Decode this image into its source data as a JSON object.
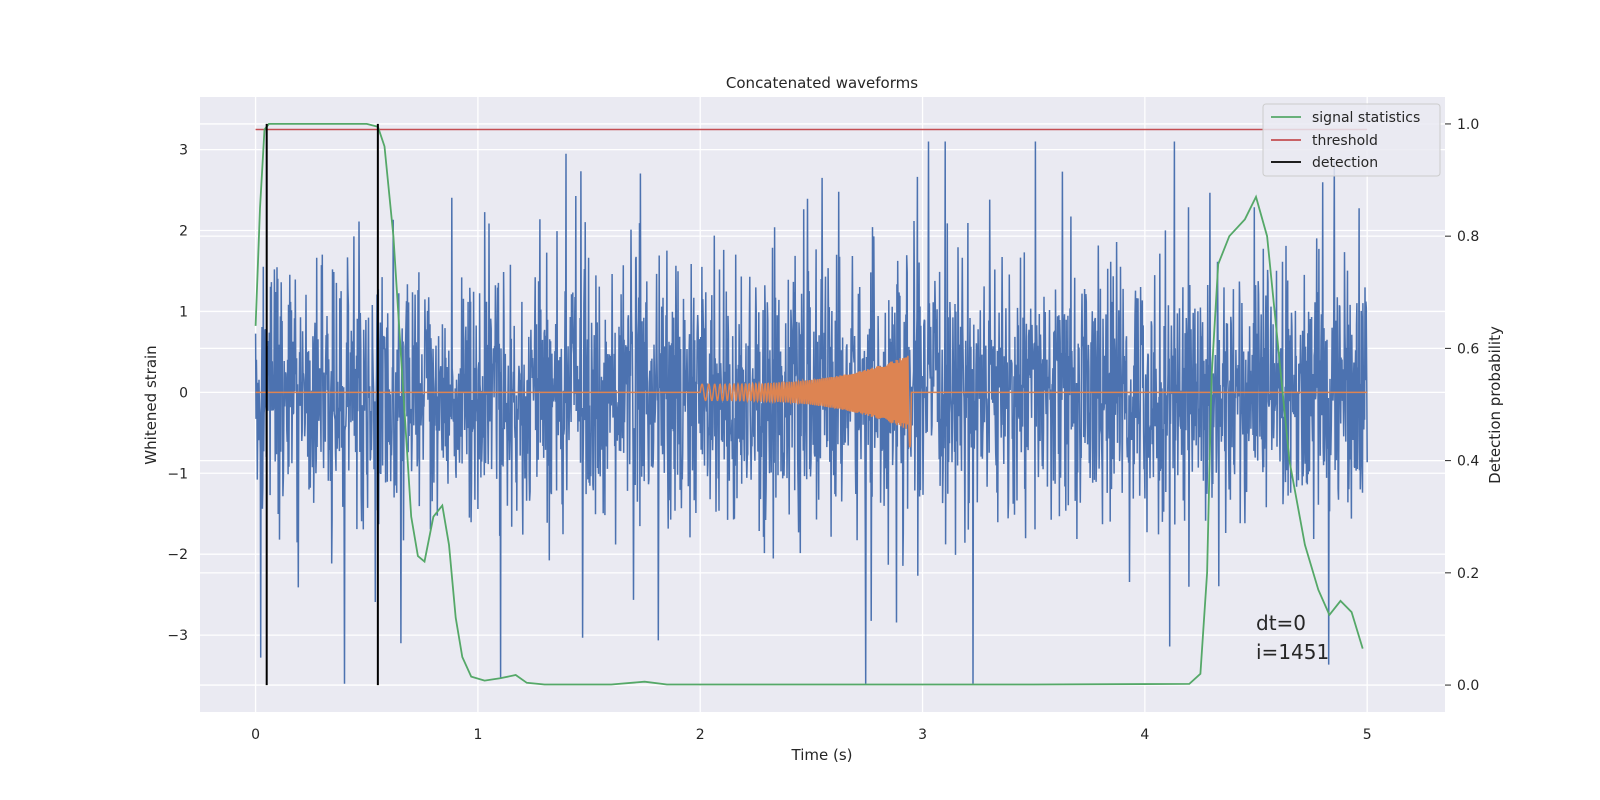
{
  "chart_data": {
    "type": "line",
    "title": "Concatenated waveforms",
    "xlabel": "Time (s)",
    "ylabel": "Whitened strain",
    "y2label": "Detection probability",
    "xlim": [
      -0.25,
      5.35
    ],
    "ylim": [
      -3.95,
      3.65
    ],
    "y2lim": [
      -0.048,
      1.048
    ],
    "xticks": [
      0,
      1,
      2,
      3,
      4,
      5
    ],
    "yticks": [
      -3,
      -2,
      -1,
      0,
      1,
      2,
      3
    ],
    "y2ticks": [
      0.0,
      0.2,
      0.4,
      0.6,
      0.8,
      1.0
    ],
    "y2tick_labels": [
      "0.0",
      "0.2",
      "0.4",
      "0.6",
      "0.8",
      "1.0"
    ],
    "grid": true,
    "legend_placement": "top-right",
    "colors": {
      "noise": "#4c72b0",
      "signal": "#dd8452",
      "statistics": "#55a868",
      "threshold": "#c44e52",
      "detection": "#000000",
      "background": "#eaeaf2",
      "grid": "#ffffff"
    },
    "noise_series": {
      "x_range": [
        0,
        5
      ],
      "typical_abs_peak": 2.6,
      "max": 3.1,
      "min": -3.6
    },
    "signal_series": {
      "x_range": [
        2.0,
        2.95
      ],
      "amplitude_start": 0.1,
      "amplitude_end": 0.48,
      "min_at_end": -0.68
    },
    "series": [
      {
        "name": "signal statistics",
        "axis": "right",
        "x": [
          0.0,
          0.02,
          0.04,
          0.06,
          0.08,
          0.12,
          0.3,
          0.5,
          0.55,
          0.58,
          0.62,
          0.66,
          0.7,
          0.73,
          0.76,
          0.8,
          0.84,
          0.87,
          0.9,
          0.93,
          0.97,
          1.03,
          1.1,
          1.17,
          1.22,
          1.3,
          1.6,
          1.75,
          1.85,
          2.5,
          3.5,
          4.2,
          4.25,
          4.28,
          4.3,
          4.33,
          4.38,
          4.45,
          4.5,
          4.55,
          4.6,
          4.65,
          4.72,
          4.78,
          4.83,
          4.88,
          4.93,
          4.98
        ],
        "y": [
          0.64,
          0.85,
          0.99,
          1.0,
          1.0,
          1.0,
          1.0,
          1.0,
          0.995,
          0.96,
          0.8,
          0.55,
          0.3,
          0.23,
          0.22,
          0.3,
          0.32,
          0.25,
          0.12,
          0.05,
          0.015,
          0.008,
          0.012,
          0.018,
          0.004,
          0.001,
          0.001,
          0.006,
          0.001,
          0.001,
          0.001,
          0.002,
          0.02,
          0.2,
          0.55,
          0.75,
          0.8,
          0.83,
          0.87,
          0.8,
          0.6,
          0.4,
          0.25,
          0.17,
          0.125,
          0.15,
          0.13,
          0.065
        ]
      },
      {
        "name": "threshold",
        "axis": "right",
        "x": [
          0,
          5
        ],
        "y": [
          0.99,
          0.99
        ]
      },
      {
        "name": "detection",
        "axis": "right",
        "type": "vlines",
        "x": [
          0.05,
          0.55
        ],
        "ymin": 0.0,
        "ymax": 1.0
      }
    ],
    "annotations": [
      "dt=0",
      "i=1451"
    ]
  }
}
